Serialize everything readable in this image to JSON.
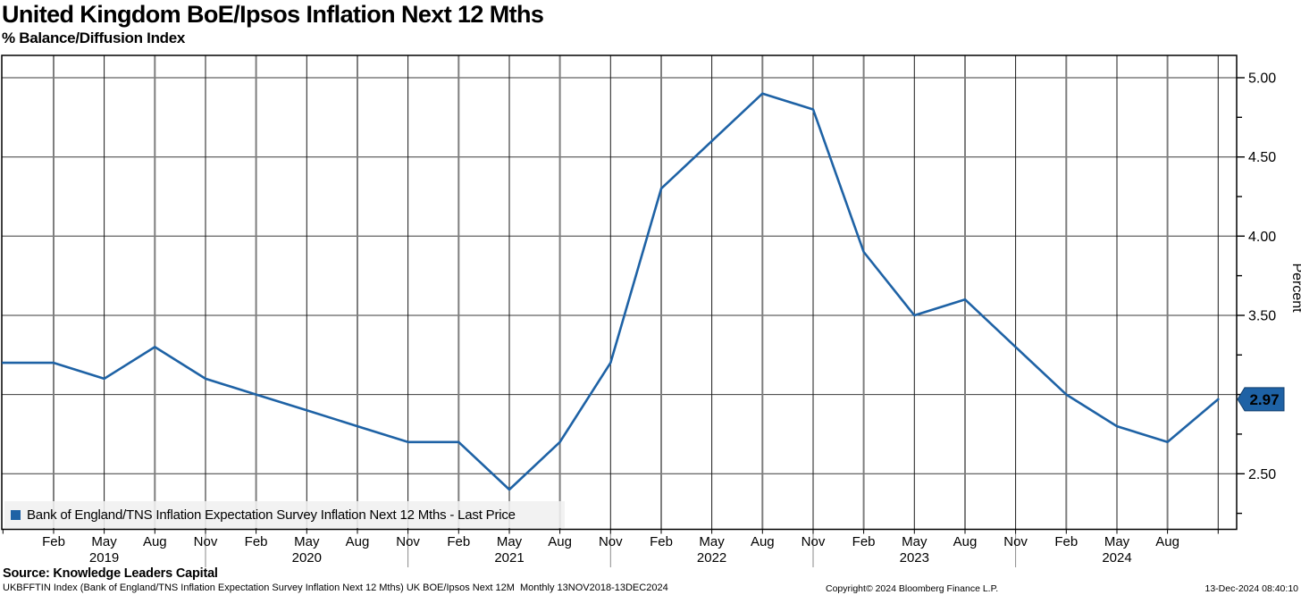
{
  "title": "United Kingdom BoE/Ipsos Inflation Next 12 Mths",
  "subtitle": "% Balance/Diffusion Index",
  "legend": {
    "label": "Bank of England/TNS Inflation Expectation Survey Inflation Next 12 Mths - Last Price",
    "color": "#1e62a5"
  },
  "footer": {
    "source": "Source: Knowledge Leaders Capital",
    "description": "UKBFFTIN Index (Bank of England/TNS Inflation Expectation Survey Inflation Next 12 Mths) UK BOE/Ipsos Next 12M  Monthly 13NOV2018-13DEC2024",
    "copyright": "Copyright© 2024 Bloomberg Finance L.P.",
    "timestamp": "13-Dec-2024 08:40:10"
  },
  "chart_data": {
    "type": "line",
    "title": "United Kingdom BoE/Ipsos Inflation Next 12 Mths",
    "ylabel": "Percent",
    "ylim": [
      2.08,
      5.14
    ],
    "y_ticks": [
      2.5,
      3.0,
      3.5,
      4.0,
      4.5,
      5.0
    ],
    "grid": "on",
    "legend_position": "bottom-left",
    "last_price": "2.97",
    "line_color": "#1e62a5",
    "x_tick_months": [
      "Feb",
      "May",
      "Aug",
      "Nov"
    ],
    "x_axis_years": [
      "2019",
      "2020",
      "2021",
      "2022",
      "2023",
      "2024"
    ],
    "categories": [
      "Nov 2018",
      "Feb 2019",
      "May 2019",
      "Aug 2019",
      "Nov 2019",
      "Feb 2020",
      "May 2020",
      "Aug 2020",
      "Nov 2020",
      "Feb 2021",
      "May 2021",
      "Aug 2021",
      "Nov 2021",
      "Feb 2022",
      "May 2022",
      "Aug 2022",
      "Nov 2022",
      "Feb 2023",
      "May 2023",
      "Aug 2023",
      "Nov 2023",
      "Feb 2024",
      "May 2024",
      "Aug 2024",
      "Nov 2024"
    ],
    "series": [
      {
        "name": "Bank of England/TNS Inflation Expectation Survey Inflation Next 12 Mths - Last Price",
        "values": [
          3.2,
          3.2,
          3.1,
          3.3,
          3.1,
          3.0,
          2.9,
          2.8,
          2.7,
          2.7,
          2.4,
          2.7,
          3.2,
          4.3,
          4.6,
          4.9,
          4.8,
          3.9,
          3.5,
          3.6,
          3.3,
          3.0,
          2.8,
          2.7,
          2.97
        ]
      }
    ]
  }
}
